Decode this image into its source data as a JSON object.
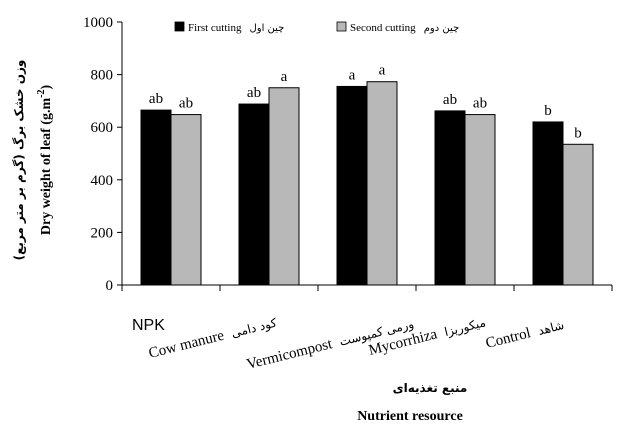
{
  "chart_data": {
    "type": "bar",
    "categories": [
      {
        "en": "NPK",
        "fa": ""
      },
      {
        "en": "Cow manure",
        "fa": "کود دامی"
      },
      {
        "en": "Vermicompost",
        "fa": "ورمی کمپوست"
      },
      {
        "en": "Mycorrhiza",
        "fa": "میکوریزا"
      },
      {
        "en": "Control",
        "fa": "شاهد"
      }
    ],
    "series": [
      {
        "name": "First cutting",
        "name_fa": "چین اول",
        "color": "#000000",
        "values": [
          665,
          688,
          755,
          662,
          620
        ],
        "labels": [
          "ab",
          "ab",
          "a",
          "ab",
          "b"
        ]
      },
      {
        "name": "Second cutting",
        "name_fa": "چین دوم",
        "color": "#b8b8b8",
        "values": [
          648,
          750,
          773,
          648,
          535
        ],
        "labels": [
          "ab",
          "a",
          "a",
          "ab",
          "b"
        ]
      }
    ],
    "ylim": [
      0,
      1000
    ],
    "yticks": [
      0,
      200,
      400,
      600,
      800,
      1000
    ],
    "xlabel": "Nutrient resource",
    "xlabel_fa": "منبع تغذیه‌ای",
    "ylabel": "Dry weight of leaf (g.m-2)",
    "ylabel_fa": "وزن خشک برگ (گرم بر متر مربع)",
    "legend_position": "top",
    "grid": false
  }
}
